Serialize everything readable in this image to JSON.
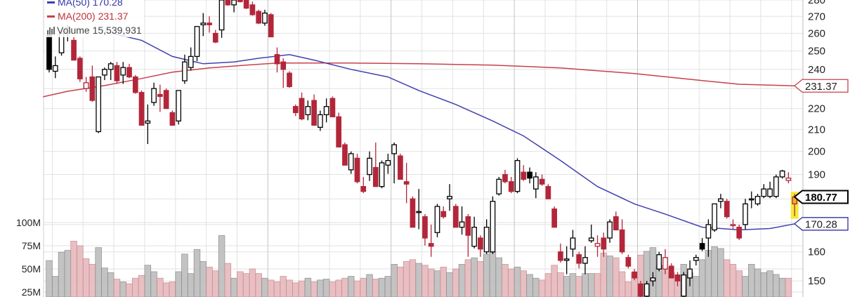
{
  "legend": {
    "ma50_label": "MA(50) 170.28",
    "ma200_label": "MA(200) 231.37",
    "volume_label": "Volume 15,539,931"
  },
  "colors": {
    "up_outline": "#000000",
    "down": "#b3263a",
    "ma50": "#4040b0",
    "ma200": "#c8404c",
    "volume_down": "#e6b9bd",
    "volume_up": "#bdbdbd",
    "highlight": "#f3ea3a"
  },
  "chart_data": {
    "type": "candlestick",
    "title": "",
    "price_scale": "log",
    "ylim": [
      138,
      280
    ],
    "price_axis": {
      "ticks": [
        "150",
        "160",
        "190",
        "200",
        "210",
        "220",
        "240",
        "250",
        "260",
        "270",
        "280"
      ],
      "tags": [
        {
          "label": "231.37",
          "value": 231.37,
          "series": "ma200"
        },
        {
          "label": "180.77",
          "value": 180.77,
          "series": "last"
        },
        {
          "label": "170.28",
          "value": 170.28,
          "series": "ma50"
        }
      ]
    },
    "volume_axis": {
      "ticks": [
        {
          "label": "25M",
          "value": 25
        },
        {
          "label": "50M",
          "value": 50
        },
        {
          "label": "75M",
          "value": 75
        },
        {
          "label": "100M",
          "value": 100
        }
      ],
      "unit": "M"
    },
    "candles": [
      [
        259,
        262,
        238,
        240
      ],
      [
        239,
        247,
        235,
        242
      ],
      [
        249,
        262,
        247,
        260
      ],
      [
        260,
        265,
        255,
        263
      ],
      [
        256,
        258,
        245,
        245
      ],
      [
        246,
        247,
        233,
        235
      ],
      [
        230,
        236,
        228,
        233
      ],
      [
        236,
        242,
        223,
        224
      ],
      [
        209,
        236,
        208,
        236
      ],
      [
        237,
        241,
        234,
        240
      ],
      [
        240,
        244,
        234,
        243
      ],
      [
        242,
        244,
        232,
        234
      ],
      [
        237,
        244,
        232,
        241
      ],
      [
        241,
        243,
        235,
        236
      ],
      [
        236,
        237,
        227,
        228
      ],
      [
        228,
        229,
        212,
        212
      ],
      [
        213,
        222,
        203,
        214
      ],
      [
        223,
        233,
        221,
        230
      ],
      [
        227,
        232,
        218,
        226
      ],
      [
        229,
        230,
        220,
        220
      ],
      [
        218,
        219,
        212,
        212
      ],
      [
        214,
        229,
        212,
        229
      ],
      [
        234,
        248,
        232,
        244
      ],
      [
        241,
        252,
        239,
        247
      ],
      [
        247,
        264,
        244,
        264
      ],
      [
        265,
        272,
        258,
        266
      ],
      [
        266,
        270,
        260,
        265
      ],
      [
        260,
        262,
        254,
        255
      ],
      [
        262,
        282,
        257,
        280
      ],
      [
        284,
        288,
        276,
        277
      ],
      [
        277,
        288,
        272,
        282
      ],
      [
        285,
        290,
        278,
        279
      ],
      [
        283,
        286,
        274,
        275
      ],
      [
        277,
        279,
        270,
        271
      ],
      [
        273,
        274,
        265,
        266
      ],
      [
        266,
        274,
        264,
        272
      ],
      [
        271,
        272,
        258,
        258
      ],
      [
        248,
        252,
        238,
        243
      ],
      [
        244,
        246,
        230,
        240
      ],
      [
        238,
        239,
        230,
        231
      ],
      [
        221,
        222,
        216,
        218
      ],
      [
        225,
        228,
        214,
        215
      ],
      [
        217,
        224,
        214,
        221
      ],
      [
        224,
        227,
        212,
        212
      ],
      [
        211,
        219,
        209,
        217
      ],
      [
        217,
        225,
        213,
        221
      ],
      [
        225,
        226,
        216,
        216
      ],
      [
        216,
        218,
        202,
        202
      ],
      [
        203,
        204,
        194,
        194
      ],
      [
        192,
        200,
        190,
        199
      ],
      [
        197,
        199,
        186,
        187
      ],
      [
        185,
        189,
        182,
        183
      ],
      [
        190,
        200,
        187,
        197
      ],
      [
        193,
        204,
        185,
        185
      ],
      [
        185,
        196,
        184,
        195
      ],
      [
        194,
        199,
        190,
        196
      ],
      [
        199,
        204,
        186,
        203
      ],
      [
        198,
        199,
        188,
        188
      ],
      [
        187,
        195,
        178,
        186
      ],
      [
        180,
        181,
        169,
        169
      ],
      [
        175,
        184,
        168,
        175
      ],
      [
        173,
        174,
        162,
        165
      ],
      [
        163,
        170,
        158,
        162
      ],
      [
        167,
        178,
        165,
        177
      ],
      [
        175,
        177,
        172,
        173
      ],
      [
        180,
        186,
        175,
        181
      ],
      [
        177,
        178,
        169,
        169
      ],
      [
        169,
        177,
        166,
        171
      ],
      [
        173,
        174,
        158,
        166
      ],
      [
        162,
        173,
        161,
        169
      ],
      [
        165,
        166,
        158,
        161
      ],
      [
        160,
        172,
        159,
        169
      ],
      [
        160,
        181,
        159,
        179
      ],
      [
        182,
        189,
        181,
        188
      ],
      [
        190,
        192,
        186,
        187
      ],
      [
        187,
        189,
        182,
        183
      ],
      [
        183,
        197,
        182,
        196
      ],
      [
        191,
        194,
        187,
        188
      ],
      [
        191,
        193,
        186,
        188.5
      ],
      [
        184,
        191,
        180,
        189
      ],
      [
        188,
        190,
        185,
        186
      ],
      [
        185,
        186,
        180,
        180
      ],
      [
        176,
        177,
        169,
        169
      ],
      [
        160,
        163,
        156,
        157
      ],
      [
        157,
        162,
        152,
        157.5
      ],
      [
        161,
        168,
        158,
        165
      ],
      [
        159,
        160,
        154,
        156
      ],
      [
        156,
        162,
        152,
        158
      ],
      [
        164,
        170,
        163,
        165
      ],
      [
        162,
        166,
        158,
        163
      ],
      [
        165,
        167,
        158,
        161
      ],
      [
        165,
        172,
        163,
        171
      ],
      [
        173,
        175,
        168,
        168
      ],
      [
        168,
        172,
        159,
        160
      ],
      [
        158,
        159,
        154,
        155
      ],
      [
        153,
        154,
        150,
        151
      ],
      [
        149,
        150,
        143,
        145
      ],
      [
        145,
        150,
        142,
        149
      ],
      [
        150,
        153,
        148,
        151
      ],
      [
        154,
        160,
        153,
        159
      ],
      [
        154,
        161,
        152,
        158
      ],
      [
        155,
        156,
        151,
        151
      ],
      [
        152,
        153,
        148,
        150
      ],
      [
        145,
        153,
        142,
        152
      ],
      [
        151,
        157,
        148,
        154
      ],
      [
        157,
        159,
        155,
        158
      ],
      [
        163,
        165,
        160,
        161
      ],
      [
        165,
        172,
        158,
        170
      ],
      [
        168,
        178,
        167,
        178
      ],
      [
        179,
        182,
        176,
        180
      ],
      [
        179,
        180,
        172,
        173
      ],
      [
        170,
        172,
        168,
        170
      ],
      [
        169,
        170,
        164,
        165
      ],
      [
        170,
        180,
        168,
        178
      ],
      [
        180,
        183,
        176,
        180
      ],
      [
        178,
        182,
        177,
        181
      ],
      [
        181,
        186,
        180,
        184
      ],
      [
        181,
        187,
        180,
        184
      ],
      [
        181,
        190,
        180,
        189
      ],
      [
        189,
        192,
        188,
        191.5
      ],
      [
        187.5,
        191,
        186,
        188.5
      ],
      [
        178,
        182,
        173,
        180.77
      ]
    ],
    "candle_fields": [
      "open",
      "high",
      "low",
      "close"
    ],
    "last_candle_highlighted": true,
    "volume_millions": [
      59,
      42,
      68,
      70,
      80,
      75,
      61,
      55,
      73,
      51,
      46,
      39,
      36,
      34,
      40,
      43,
      54,
      47,
      40,
      35,
      36,
      47,
      66,
      45,
      71,
      58,
      52,
      48,
      86,
      56,
      40,
      47,
      45,
      50,
      45,
      40,
      38,
      36,
      42,
      38,
      35,
      37,
      40,
      36,
      38,
      39,
      36,
      38,
      40,
      42,
      37,
      40,
      44,
      39,
      40,
      42,
      55,
      52,
      58,
      60,
      56,
      54,
      50,
      48,
      52,
      46,
      50,
      55,
      60,
      62,
      58,
      66,
      68,
      62,
      55,
      50,
      52,
      48,
      44,
      40,
      38,
      45,
      54,
      46,
      42,
      45,
      42,
      45,
      45,
      45,
      67,
      64,
      62,
      47,
      36,
      46,
      65,
      69,
      73,
      54,
      51,
      46,
      37,
      55,
      46,
      42,
      60,
      70,
      74,
      72,
      60,
      55,
      48,
      42,
      55,
      50,
      46,
      48,
      44,
      40,
      40,
      15.54
    ],
    "ma50": [
      {
        "i": 9,
        "v": 261
      },
      {
        "i": 15,
        "v": 256
      },
      {
        "i": 20,
        "v": 247
      },
      {
        "i": 25,
        "v": 243
      },
      {
        "i": 30,
        "v": 244
      },
      {
        "i": 34,
        "v": 246
      },
      {
        "i": 39,
        "v": 248
      },
      {
        "i": 43,
        "v": 245
      },
      {
        "i": 49,
        "v": 240
      },
      {
        "i": 55,
        "v": 236
      },
      {
        "i": 60,
        "v": 229
      },
      {
        "i": 66,
        "v": 222
      },
      {
        "i": 72,
        "v": 214
      },
      {
        "i": 77,
        "v": 207
      },
      {
        "i": 83,
        "v": 196
      },
      {
        "i": 89,
        "v": 185
      },
      {
        "i": 95,
        "v": 178
      },
      {
        "i": 100,
        "v": 174
      },
      {
        "i": 106,
        "v": 169
      },
      {
        "i": 112,
        "v": 168
      },
      {
        "i": 117,
        "v": 168.5
      },
      {
        "i": 121,
        "v": 170.28
      }
    ],
    "ma200": [
      {
        "i": -1,
        "v": 225.8
      },
      {
        "i": 3,
        "v": 228.6
      },
      {
        "i": 9,
        "v": 231.5
      },
      {
        "i": 15,
        "v": 235.2
      },
      {
        "i": 20,
        "v": 238.5
      },
      {
        "i": 26,
        "v": 240.8
      },
      {
        "i": 32,
        "v": 242.3
      },
      {
        "i": 37,
        "v": 243.4
      },
      {
        "i": 49,
        "v": 243.4
      },
      {
        "i": 60,
        "v": 243
      },
      {
        "i": 72,
        "v": 242.3
      },
      {
        "i": 83,
        "v": 240.8
      },
      {
        "i": 95,
        "v": 237.8
      },
      {
        "i": 106,
        "v": 234.1
      },
      {
        "i": 112,
        "v": 232.2
      },
      {
        "i": 121,
        "v": 231.37
      }
    ]
  }
}
